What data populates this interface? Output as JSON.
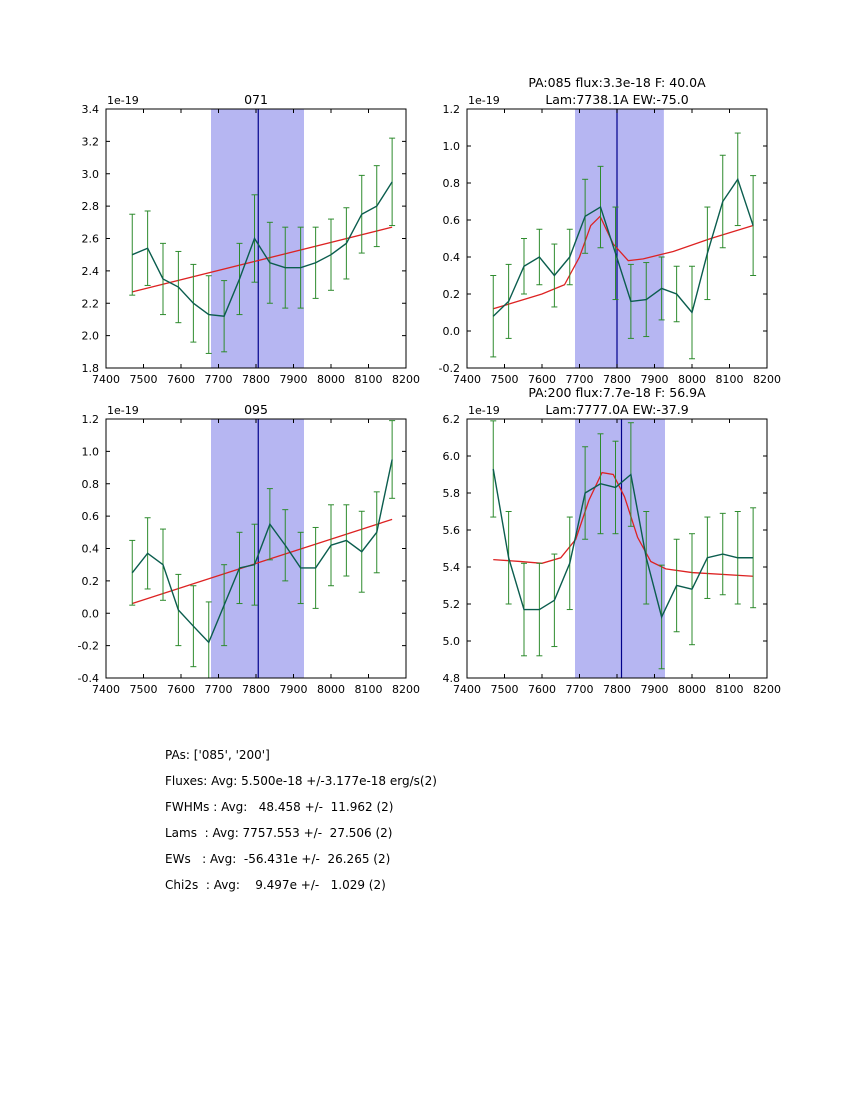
{
  "colors": {
    "band": "#b6b6f2",
    "vline": "#00008b",
    "data_line": "#0b5d4e",
    "error_bar": "#2e8b2e",
    "fit_line": "#dd2222",
    "axes": "#000000",
    "background": "#ffffff"
  },
  "chart_data": [
    {
      "type": "line",
      "title": [
        "071"
      ],
      "offset_label": "1e-19",
      "xlabel": "",
      "ylabel": "",
      "legend": "none",
      "grid": false,
      "xlim": [
        7400,
        8200
      ],
      "ylim": [
        1.8,
        3.4
      ],
      "xticks": [
        7400,
        7500,
        7600,
        7700,
        7800,
        7900,
        8000,
        8100,
        8200
      ],
      "yticks": [
        1.8,
        2.0,
        2.2,
        2.4,
        2.6,
        2.8,
        3.0,
        3.2,
        3.4
      ],
      "band": [
        7680,
        7928
      ],
      "vline": 7806,
      "x": [
        7470,
        7511,
        7552,
        7593,
        7633,
        7674,
        7715,
        7756,
        7796,
        7837,
        7878,
        7919,
        7959,
        8000,
        8041,
        8082,
        8122,
        8163
      ],
      "y": [
        2.5,
        2.54,
        2.35,
        2.3,
        2.2,
        2.13,
        2.12,
        2.35,
        2.6,
        2.45,
        2.42,
        2.42,
        2.45,
        2.5,
        2.57,
        2.75,
        2.8,
        2.95
      ],
      "yerr": [
        0.25,
        0.23,
        0.22,
        0.22,
        0.24,
        0.24,
        0.22,
        0.22,
        0.27,
        0.25,
        0.25,
        0.25,
        0.22,
        0.22,
        0.22,
        0.24,
        0.25,
        0.27
      ],
      "fit": {
        "x": [
          7470,
          8163
        ],
        "y": [
          2.27,
          2.67
        ]
      }
    },
    {
      "type": "line",
      "title": [
        "PA:085 flux:3.3e-18 F: 40.0A",
        "Lam:7738.1A EW:-75.0"
      ],
      "offset_label": "1e-19",
      "xlabel": "",
      "ylabel": "",
      "legend": "none",
      "grid": false,
      "xlim": [
        7400,
        8200
      ],
      "ylim": [
        -0.2,
        1.2
      ],
      "xticks": [
        7400,
        7500,
        7600,
        7700,
        7800,
        7900,
        8000,
        8100,
        8200
      ],
      "yticks": [
        -0.2,
        0.0,
        0.2,
        0.4,
        0.6,
        0.8,
        1.0,
        1.2
      ],
      "band": [
        7688,
        7925
      ],
      "vline": 7800,
      "x": [
        7470,
        7511,
        7552,
        7593,
        7633,
        7674,
        7715,
        7756,
        7796,
        7837,
        7878,
        7919,
        7959,
        8000,
        8041,
        8082,
        8122,
        8163
      ],
      "y": [
        0.08,
        0.16,
        0.35,
        0.4,
        0.3,
        0.4,
        0.62,
        0.67,
        0.42,
        0.16,
        0.17,
        0.23,
        0.2,
        0.1,
        0.42,
        0.7,
        0.82,
        0.57
      ],
      "yerr": [
        0.22,
        0.2,
        0.15,
        0.15,
        0.17,
        0.15,
        0.2,
        0.22,
        0.25,
        0.2,
        0.2,
        0.17,
        0.15,
        0.25,
        0.25,
        0.25,
        0.25,
        0.27
      ],
      "fit": {
        "x": [
          7470,
          7600,
          7660,
          7700,
          7730,
          7755,
          7790,
          7830,
          7870,
          7950,
          8050,
          8163
        ],
        "y": [
          0.12,
          0.2,
          0.25,
          0.4,
          0.57,
          0.62,
          0.47,
          0.38,
          0.39,
          0.43,
          0.5,
          0.57
        ]
      }
    },
    {
      "type": "line",
      "title": [
        "095"
      ],
      "offset_label": "1e-19",
      "xlabel": "",
      "ylabel": "",
      "legend": "none",
      "grid": false,
      "xlim": [
        7400,
        8200
      ],
      "ylim": [
        -0.4,
        1.2
      ],
      "xticks": [
        7400,
        7500,
        7600,
        7700,
        7800,
        7900,
        8000,
        8100,
        8200
      ],
      "yticks": [
        -0.4,
        -0.2,
        0.0,
        0.2,
        0.4,
        0.6,
        0.8,
        1.0,
        1.2
      ],
      "band": [
        7680,
        7928
      ],
      "vline": 7806,
      "x": [
        7470,
        7511,
        7552,
        7593,
        7633,
        7674,
        7715,
        7756,
        7796,
        7837,
        7878,
        7919,
        7959,
        8000,
        8041,
        8082,
        8122,
        8163
      ],
      "y": [
        0.25,
        0.37,
        0.3,
        0.02,
        -0.08,
        -0.18,
        0.05,
        0.28,
        0.3,
        0.55,
        0.42,
        0.28,
        0.28,
        0.42,
        0.45,
        0.38,
        0.5,
        0.95
      ],
      "yerr": [
        0.2,
        0.22,
        0.22,
        0.22,
        0.25,
        0.25,
        0.25,
        0.22,
        0.25,
        0.22,
        0.22,
        0.22,
        0.25,
        0.25,
        0.22,
        0.25,
        0.25,
        0.24
      ],
      "fit": {
        "x": [
          7470,
          8163
        ],
        "y": [
          0.06,
          0.58
        ]
      }
    },
    {
      "type": "line",
      "title": [
        "PA:200 flux:7.7e-18 F: 56.9A",
        "Lam:7777.0A EW:-37.9"
      ],
      "offset_label": "1e-19",
      "xlabel": "",
      "ylabel": "",
      "legend": "none",
      "grid": false,
      "xlim": [
        7400,
        8200
      ],
      "ylim": [
        4.8,
        6.2
      ],
      "xticks": [
        7400,
        7500,
        7600,
        7700,
        7800,
        7900,
        8000,
        8100,
        8200
      ],
      "yticks": [
        4.8,
        5.0,
        5.2,
        5.4,
        5.6,
        5.8,
        6.0,
        6.2
      ],
      "band": [
        7688,
        7928
      ],
      "vline": 7812,
      "x": [
        7470,
        7511,
        7552,
        7593,
        7633,
        7674,
        7715,
        7756,
        7796,
        7837,
        7878,
        7919,
        7959,
        8000,
        8041,
        8082,
        8122,
        8163
      ],
      "y": [
        5.93,
        5.45,
        5.17,
        5.17,
        5.22,
        5.42,
        5.8,
        5.85,
        5.83,
        5.9,
        5.45,
        5.13,
        5.3,
        5.28,
        5.45,
        5.47,
        5.45,
        5.45
      ],
      "yerr": [
        0.26,
        0.25,
        0.25,
        0.25,
        0.25,
        0.25,
        0.25,
        0.27,
        0.25,
        0.28,
        0.25,
        0.28,
        0.25,
        0.3,
        0.22,
        0.22,
        0.25,
        0.27
      ],
      "fit": {
        "x": [
          7470,
          7540,
          7600,
          7650,
          7690,
          7725,
          7760,
          7790,
          7820,
          7855,
          7890,
          7930,
          8000,
          8163
        ],
        "y": [
          5.44,
          5.43,
          5.42,
          5.45,
          5.55,
          5.76,
          5.91,
          5.9,
          5.78,
          5.56,
          5.43,
          5.39,
          5.37,
          5.35
        ]
      }
    }
  ],
  "stats": {
    "lines": [
      "PAs: ['085', '200']",
      "Fluxes: Avg: 5.500e-18 +/-3.177e-18 erg/s(2)",
      "FWHMs : Avg:   48.458 +/-  11.962 (2)",
      "Lams  : Avg: 7757.553 +/-  27.506 (2)",
      "EWs   : Avg:  -56.431e +/-  26.265 (2)",
      "Chi2s  : Avg:    9.497e +/-   1.029 (2)"
    ]
  }
}
